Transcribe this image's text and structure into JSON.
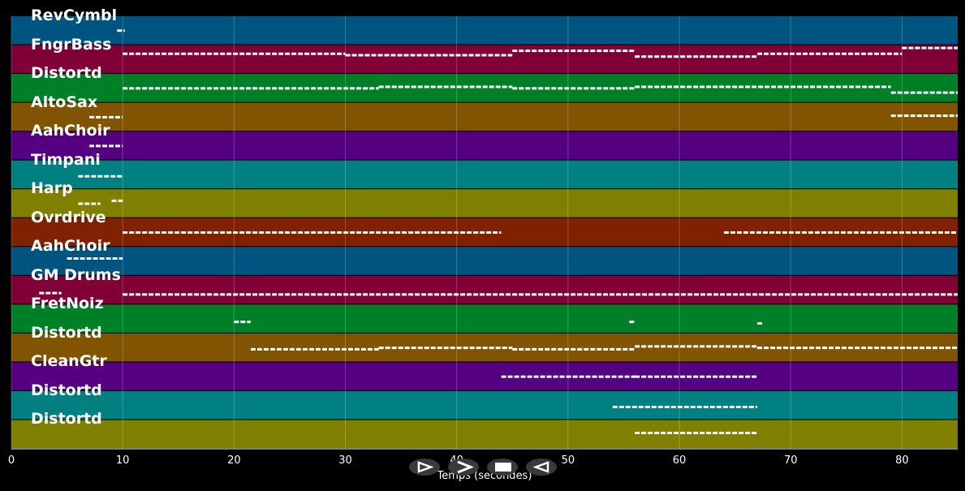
{
  "tracks": [
    {
      "name": "RevCymbl",
      "color": "#005480"
    },
    {
      "name": "FngrBass",
      "color": "#800035"
    },
    {
      "name": "Distortd",
      "color": "#008026"
    },
    {
      "name": "AltoSax",
      "color": "#805400"
    },
    {
      "name": "AahChoir",
      "color": "#550080"
    },
    {
      "name": "Timpani",
      "color": "#008080"
    },
    {
      "name": "Harp",
      "color": "#808000"
    },
    {
      "name": "Ovrdrive",
      "color": "#802200"
    },
    {
      "name": "AahChoir",
      "color": "#005480"
    },
    {
      "name": "GM Drums",
      "color": "#800035"
    },
    {
      "name": "FretNoiz",
      "color": "#008026"
    },
    {
      "name": "Distortd",
      "color": "#805400"
    },
    {
      "name": "CleanGtr",
      "color": "#550080"
    },
    {
      "name": "Distortd",
      "color": "#008080"
    },
    {
      "name": "Distortd",
      "color": "#808000"
    }
  ],
  "axis": {
    "xlabel": "Temps (secondes)",
    "xmin": 0,
    "xmax": 85,
    "ticks": [
      "0",
      "10",
      "20",
      "30",
      "40",
      "50",
      "60",
      "70",
      "80"
    ]
  },
  "notes": [
    {
      "track": 0,
      "segments": [
        [
          9.5,
          10.2,
          0.5
        ]
      ]
    },
    {
      "track": 1,
      "segments": [
        [
          10,
          30,
          0.3
        ],
        [
          30,
          45,
          0.35
        ],
        [
          45,
          56,
          0.2
        ],
        [
          56,
          67,
          0.4
        ],
        [
          67,
          80,
          0.3
        ],
        [
          80,
          85,
          0.1
        ]
      ]
    },
    {
      "track": 2,
      "segments": [
        [
          10,
          33,
          0.5
        ],
        [
          33,
          45,
          0.45
        ],
        [
          45,
          56,
          0.5
        ],
        [
          56,
          79,
          0.45
        ],
        [
          79,
          85,
          0.65
        ]
      ]
    },
    {
      "track": 3,
      "segments": [
        [
          7,
          10,
          0.5
        ],
        [
          79,
          85,
          0.45
        ]
      ]
    },
    {
      "track": 4,
      "segments": [
        [
          7,
          10,
          0.5
        ]
      ]
    },
    {
      "track": 5,
      "segments": [
        [
          6,
          10,
          0.55
        ]
      ]
    },
    {
      "track": 6,
      "segments": [
        [
          6,
          8,
          0.5
        ],
        [
          9,
          10,
          0.4
        ]
      ]
    },
    {
      "track": 7,
      "segments": [
        [
          10,
          44,
          0.5
        ],
        [
          64,
          85,
          0.5
        ]
      ]
    },
    {
      "track": 8,
      "segments": [
        [
          5,
          10,
          0.4
        ]
      ]
    },
    {
      "track": 9,
      "segments": [
        [
          2.5,
          4.5,
          0.6
        ],
        [
          10,
          85,
          0.65
        ]
      ]
    },
    {
      "track": 10,
      "segments": [
        [
          20,
          21.5,
          0.6
        ],
        [
          55.5,
          56,
          0.6
        ],
        [
          67,
          67.5,
          0.65
        ]
      ]
    },
    {
      "track": 11,
      "segments": [
        [
          21.5,
          33,
          0.55
        ],
        [
          33,
          45,
          0.5
        ],
        [
          45,
          56,
          0.55
        ],
        [
          56,
          67,
          0.45
        ],
        [
          67,
          85,
          0.5
        ]
      ]
    },
    {
      "track": 12,
      "segments": [
        [
          44,
          56,
          0.5
        ],
        [
          56,
          67,
          0.5
        ]
      ]
    },
    {
      "track": 13,
      "segments": [
        [
          54,
          67,
          0.55
        ]
      ]
    },
    {
      "track": 14,
      "segments": [
        [
          56,
          67,
          0.45
        ]
      ]
    }
  ],
  "controls": [
    {
      "name": "play-button",
      "icon": "play-icon"
    },
    {
      "name": "forward-button",
      "icon": "forward-icon"
    },
    {
      "name": "stop-button",
      "icon": "stop-icon"
    },
    {
      "name": "rewind-button",
      "icon": "rewind-icon"
    }
  ]
}
